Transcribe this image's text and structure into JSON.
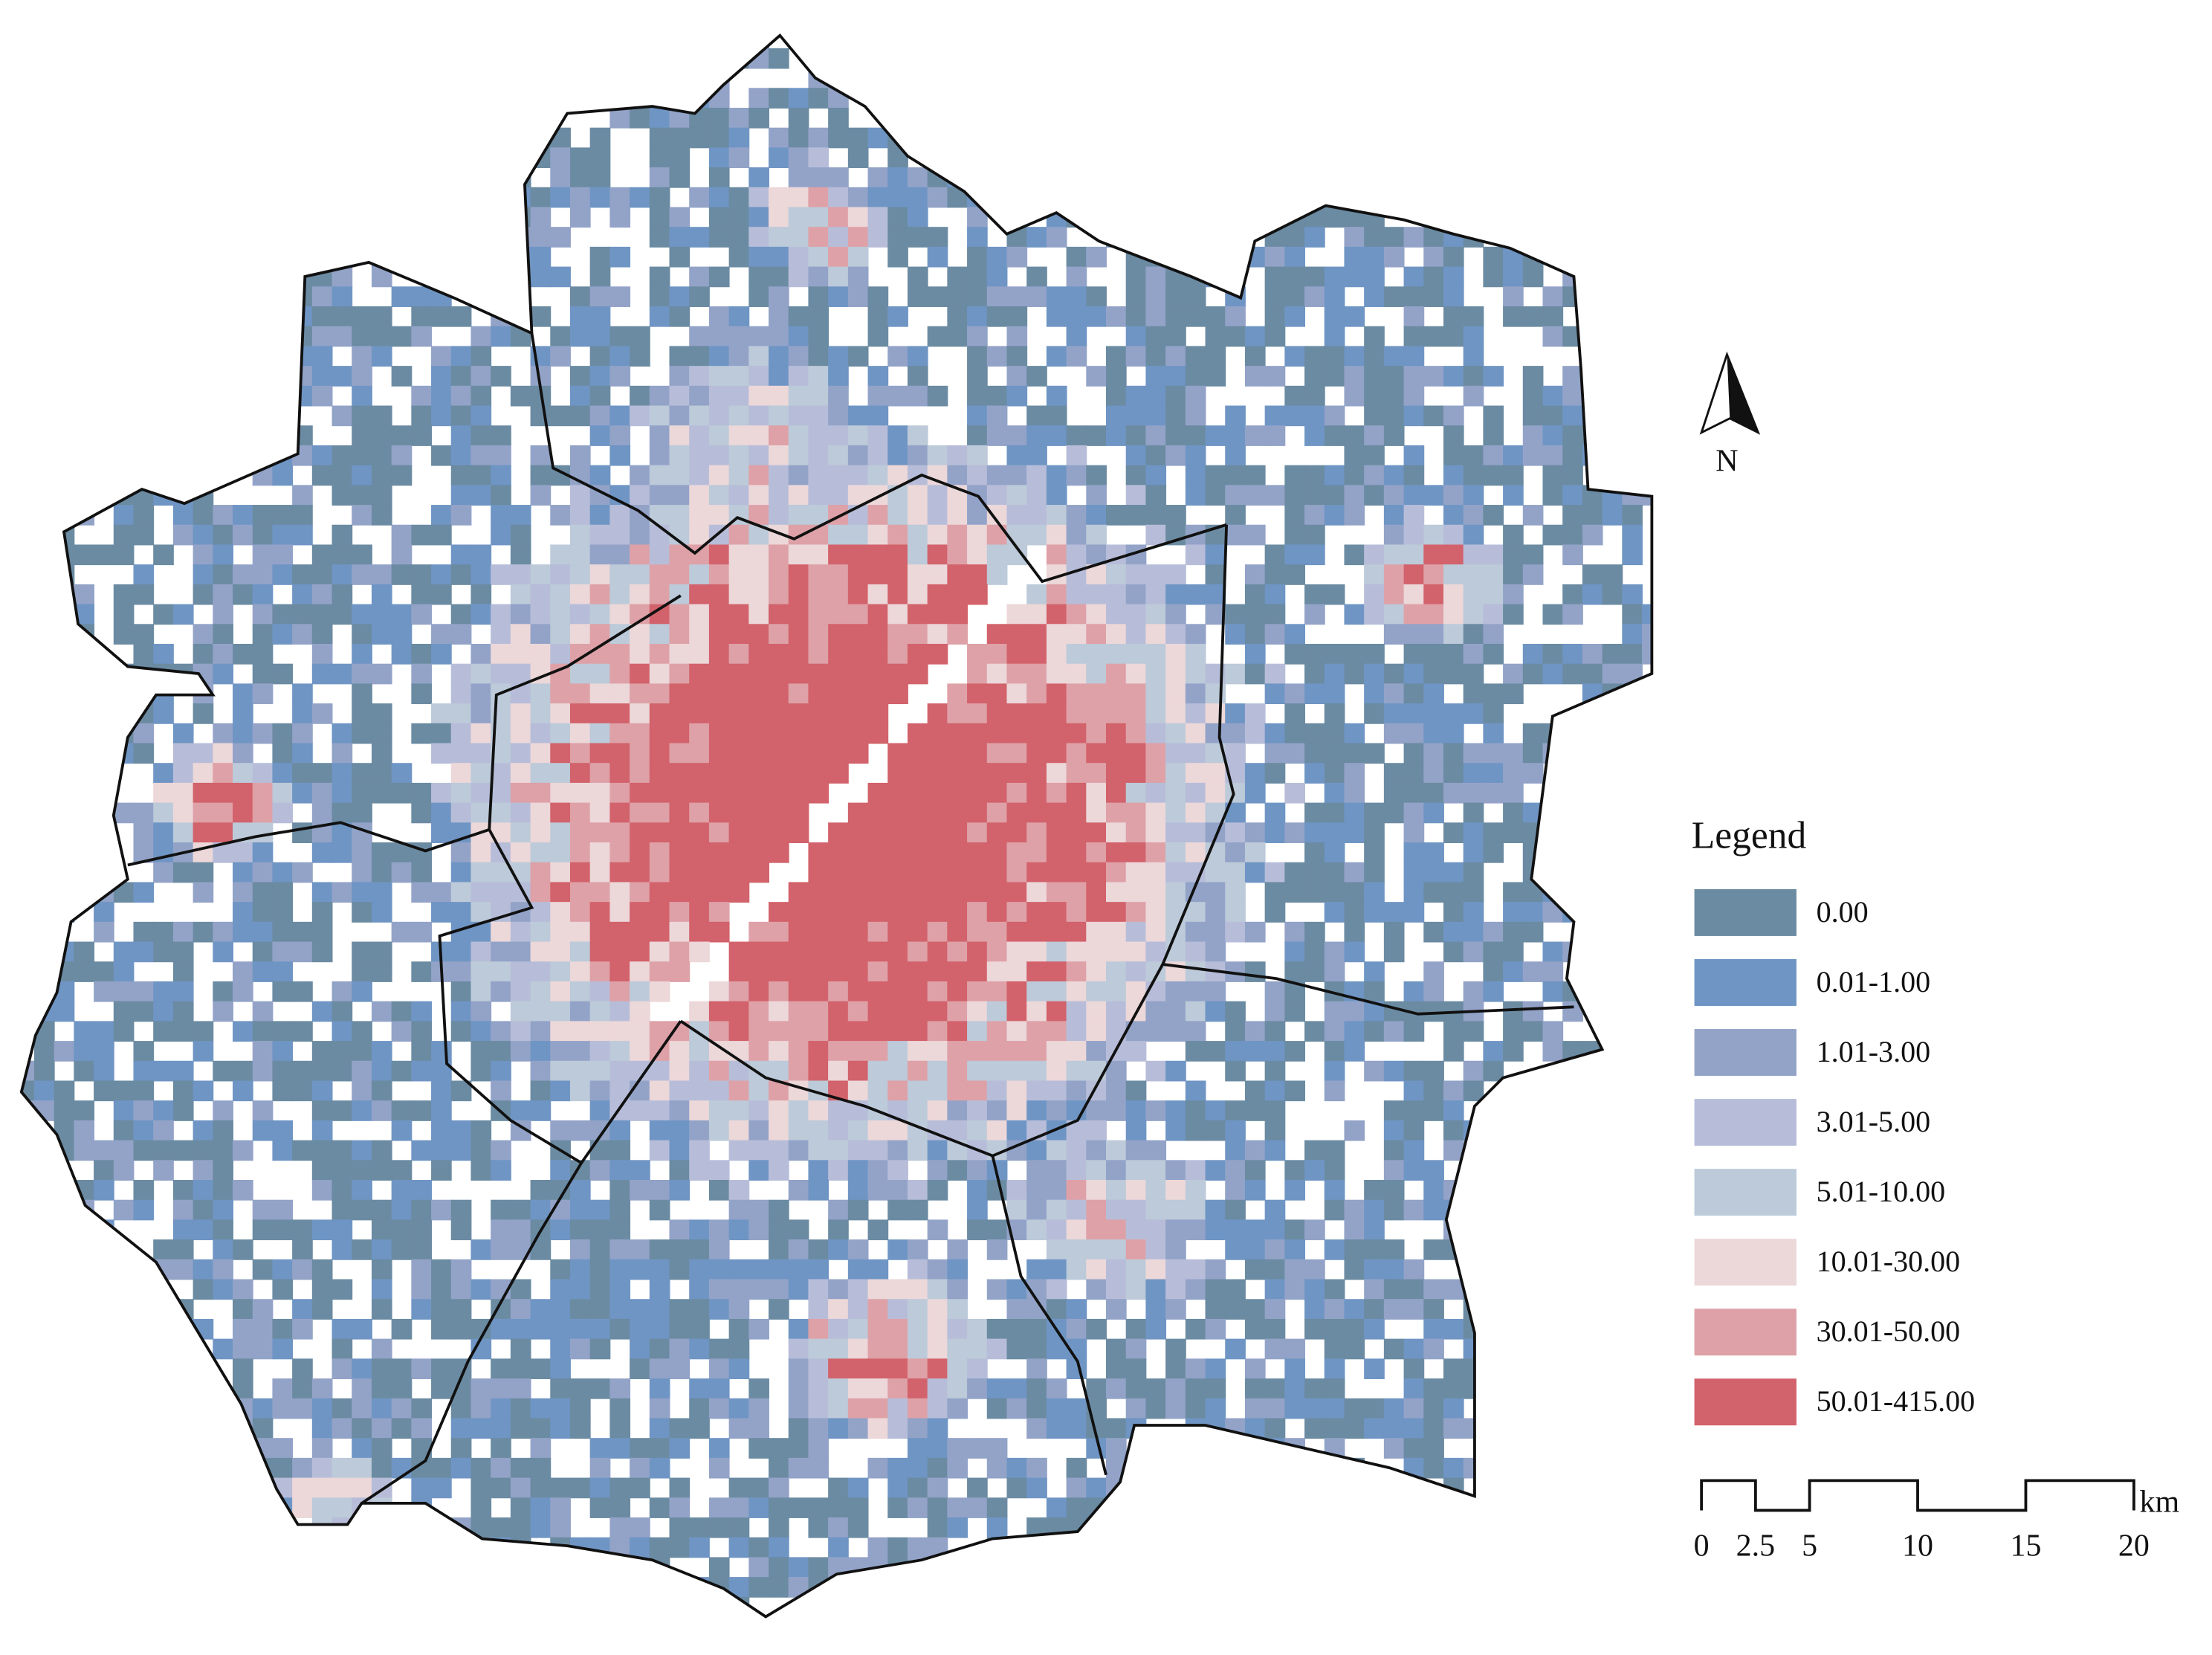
{
  "legend": {
    "title": "Legend",
    "items": [
      {
        "label": "0.00",
        "color": "#6b8ba2"
      },
      {
        "label": "0.01-1.00",
        "color": "#6f95c4"
      },
      {
        "label": "1.01-3.00",
        "color": "#93a3c8"
      },
      {
        "label": "3.01-5.00",
        "color": "#b7bdd9"
      },
      {
        "label": "5.01-10.00",
        "color": "#bccad9"
      },
      {
        "label": "10.01-30.00",
        "color": "#ecd7d9"
      },
      {
        "label": "30.01-50.00",
        "color": "#dea1a7"
      },
      {
        "label": "50.01-415.00",
        "color": "#d2626b"
      }
    ]
  },
  "north_arrow": {
    "label": "N"
  },
  "scale_bar": {
    "ticks": [
      "0",
      "2.5",
      "5",
      "10",
      "15",
      "20"
    ],
    "unit": "km"
  }
}
